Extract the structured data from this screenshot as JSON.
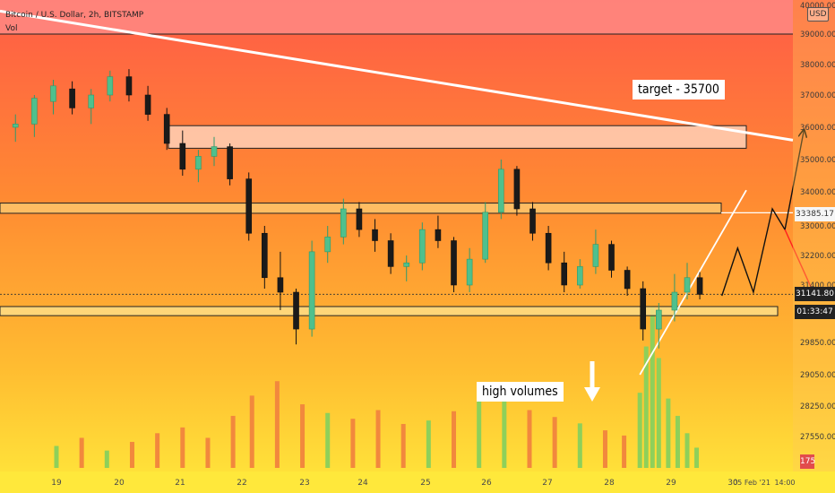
{
  "header": {
    "title": "Bitcoin / U.S. Dollar, 2h, BITSTAMP",
    "vol_label": "Vol",
    "currency": "USD"
  },
  "annotations": {
    "target": "target - 35700",
    "volumes": "high volumes"
  },
  "price_tags": {
    "level": "33385.17",
    "last": "31141.80",
    "countdown": "01:33:47",
    "vol_now": "175"
  },
  "colors": {
    "up": "#4fc08d",
    "down": "#1a1a1a",
    "vol_up": "#8ed05a",
    "vol_down": "#f2883d",
    "bg_top": "#ff5a46",
    "bg_bottom": "#ffe43a"
  },
  "chart_data": {
    "type": "candlestick",
    "title": "Bitcoin / U.S. Dollar, 2h, BITSTAMP",
    "x_ticks": [
      "19",
      "20",
      "21",
      "22",
      "23",
      "24",
      "25",
      "26",
      "27",
      "28",
      "29",
      "30",
      "05 Feb '21",
      "14:00"
    ],
    "y_ticks": [
      29850,
      30600,
      31400,
      32200,
      33000,
      34000,
      35000,
      36000,
      37000,
      38000,
      39000,
      40000
    ],
    "y_ticks_lower": [
      27550,
      28250,
      29050
    ],
    "ylim": [
      27100,
      40000
    ],
    "zones": [
      {
        "name": "resistance-top",
        "from": 35350,
        "to": 36050
      },
      {
        "name": "middle",
        "from": 33370,
        "to": 33670
      },
      {
        "name": "support",
        "from": 30550,
        "to": 30800
      }
    ],
    "horizontal_line": 39000,
    "trendline": {
      "from": [
        0,
        39800
      ],
      "to": [
        13.0,
        35600
      ]
    },
    "uptrend_line": [
      [
        9.25,
        29050
      ],
      [
        11.3,
        34050
      ]
    ],
    "projection_path": [
      [
        10.55,
        31100
      ],
      [
        10.8,
        32400
      ],
      [
        11.05,
        31200
      ],
      [
        11.35,
        33500
      ],
      [
        11.55,
        32900
      ],
      [
        11.85,
        35900
      ]
    ],
    "bear_projection": [
      [
        11.55,
        32900
      ],
      [
        12.05,
        31000
      ]
    ],
    "candles": [
      [
        -0.65,
        36000,
        36400,
        35550,
        36100
      ],
      [
        -0.35,
        36100,
        37000,
        35700,
        36900
      ],
      [
        -0.05,
        36800,
        37500,
        36400,
        37300
      ],
      [
        0.25,
        37200,
        37450,
        36400,
        36600
      ],
      [
        0.55,
        36600,
        37200,
        36100,
        37000
      ],
      [
        0.85,
        37000,
        37800,
        36800,
        37600
      ],
      [
        1.15,
        37600,
        37850,
        36800,
        37000
      ],
      [
        1.45,
        37000,
        37300,
        36200,
        36400
      ],
      [
        1.75,
        36400,
        36600,
        35300,
        35500
      ],
      [
        2.0,
        35500,
        35900,
        34500,
        34700
      ],
      [
        2.25,
        34700,
        35300,
        34300,
        35100
      ],
      [
        2.5,
        35100,
        35700,
        34800,
        35400
      ],
      [
        2.75,
        35400,
        35500,
        34200,
        34400
      ],
      [
        3.05,
        34400,
        34600,
        32600,
        32800
      ],
      [
        3.3,
        32800,
        33000,
        31300,
        31600
      ],
      [
        3.55,
        31600,
        32300,
        30700,
        31200
      ],
      [
        3.8,
        31200,
        31300,
        29800,
        30200
      ],
      [
        4.05,
        30200,
        32600,
        30000,
        32300
      ],
      [
        4.3,
        32300,
        33000,
        32000,
        32700
      ],
      [
        4.55,
        32700,
        33800,
        32500,
        33500
      ],
      [
        4.8,
        33500,
        33700,
        32700,
        32900
      ],
      [
        5.05,
        32900,
        33200,
        32300,
        32600
      ],
      [
        5.3,
        32600,
        32800,
        31700,
        31900
      ],
      [
        5.55,
        31900,
        32200,
        31500,
        32000
      ],
      [
        5.8,
        32000,
        33100,
        31800,
        32900
      ],
      [
        6.05,
        32900,
        33300,
        32400,
        32600
      ],
      [
        6.3,
        32600,
        32700,
        31200,
        31400
      ],
      [
        6.55,
        31400,
        32400,
        31200,
        32100
      ],
      [
        6.8,
        32100,
        33700,
        32000,
        33400
      ],
      [
        7.05,
        33400,
        35000,
        33200,
        34700
      ],
      [
        7.3,
        34700,
        34800,
        33300,
        33500
      ],
      [
        7.55,
        33500,
        33700,
        32600,
        32800
      ],
      [
        7.8,
        32800,
        33000,
        31800,
        32000
      ],
      [
        8.05,
        32000,
        32300,
        31200,
        31400
      ],
      [
        8.3,
        31400,
        32100,
        31300,
        31900
      ],
      [
        8.55,
        31900,
        32900,
        31700,
        32500
      ],
      [
        8.8,
        32500,
        32600,
        31600,
        31800
      ],
      [
        9.05,
        31800,
        31900,
        31100,
        31300
      ],
      [
        9.3,
        31300,
        31500,
        29900,
        30200
      ],
      [
        9.55,
        30200,
        30900,
        29700,
        30700
      ],
      [
        9.8,
        30700,
        31700,
        30400,
        31200
      ],
      [
        10.0,
        31200,
        32000,
        31000,
        31600
      ],
      [
        10.2,
        31600,
        31750,
        31000,
        31140
      ]
    ],
    "volume": [
      [
        0.0,
        380,
        "up"
      ],
      [
        0.4,
        520,
        "down"
      ],
      [
        0.8,
        300,
        "up"
      ],
      [
        1.2,
        450,
        "down"
      ],
      [
        1.6,
        600,
        "down"
      ],
      [
        2.0,
        700,
        "down"
      ],
      [
        2.4,
        520,
        "down"
      ],
      [
        2.8,
        900,
        "down"
      ],
      [
        3.1,
        1250,
        "down"
      ],
      [
        3.5,
        1500,
        "down"
      ],
      [
        3.9,
        1100,
        "down"
      ],
      [
        4.3,
        950,
        "up"
      ],
      [
        4.7,
        850,
        "down"
      ],
      [
        5.1,
        1000,
        "down"
      ],
      [
        5.5,
        760,
        "down"
      ],
      [
        5.9,
        820,
        "up"
      ],
      [
        6.3,
        980,
        "down"
      ],
      [
        6.7,
        1350,
        "up"
      ],
      [
        7.1,
        1150,
        "up"
      ],
      [
        7.5,
        1000,
        "down"
      ],
      [
        7.9,
        880,
        "down"
      ],
      [
        8.3,
        770,
        "up"
      ],
      [
        8.7,
        650,
        "down"
      ],
      [
        9.0,
        560,
        "down"
      ],
      [
        9.25,
        1300,
        "up"
      ],
      [
        9.35,
        2100,
        "up"
      ],
      [
        9.45,
        2800,
        "up"
      ],
      [
        9.55,
        1900,
        "up"
      ],
      [
        9.7,
        1200,
        "up"
      ],
      [
        9.85,
        900,
        "up"
      ],
      [
        10.0,
        600,
        "up"
      ],
      [
        10.15,
        350,
        "up"
      ]
    ]
  }
}
